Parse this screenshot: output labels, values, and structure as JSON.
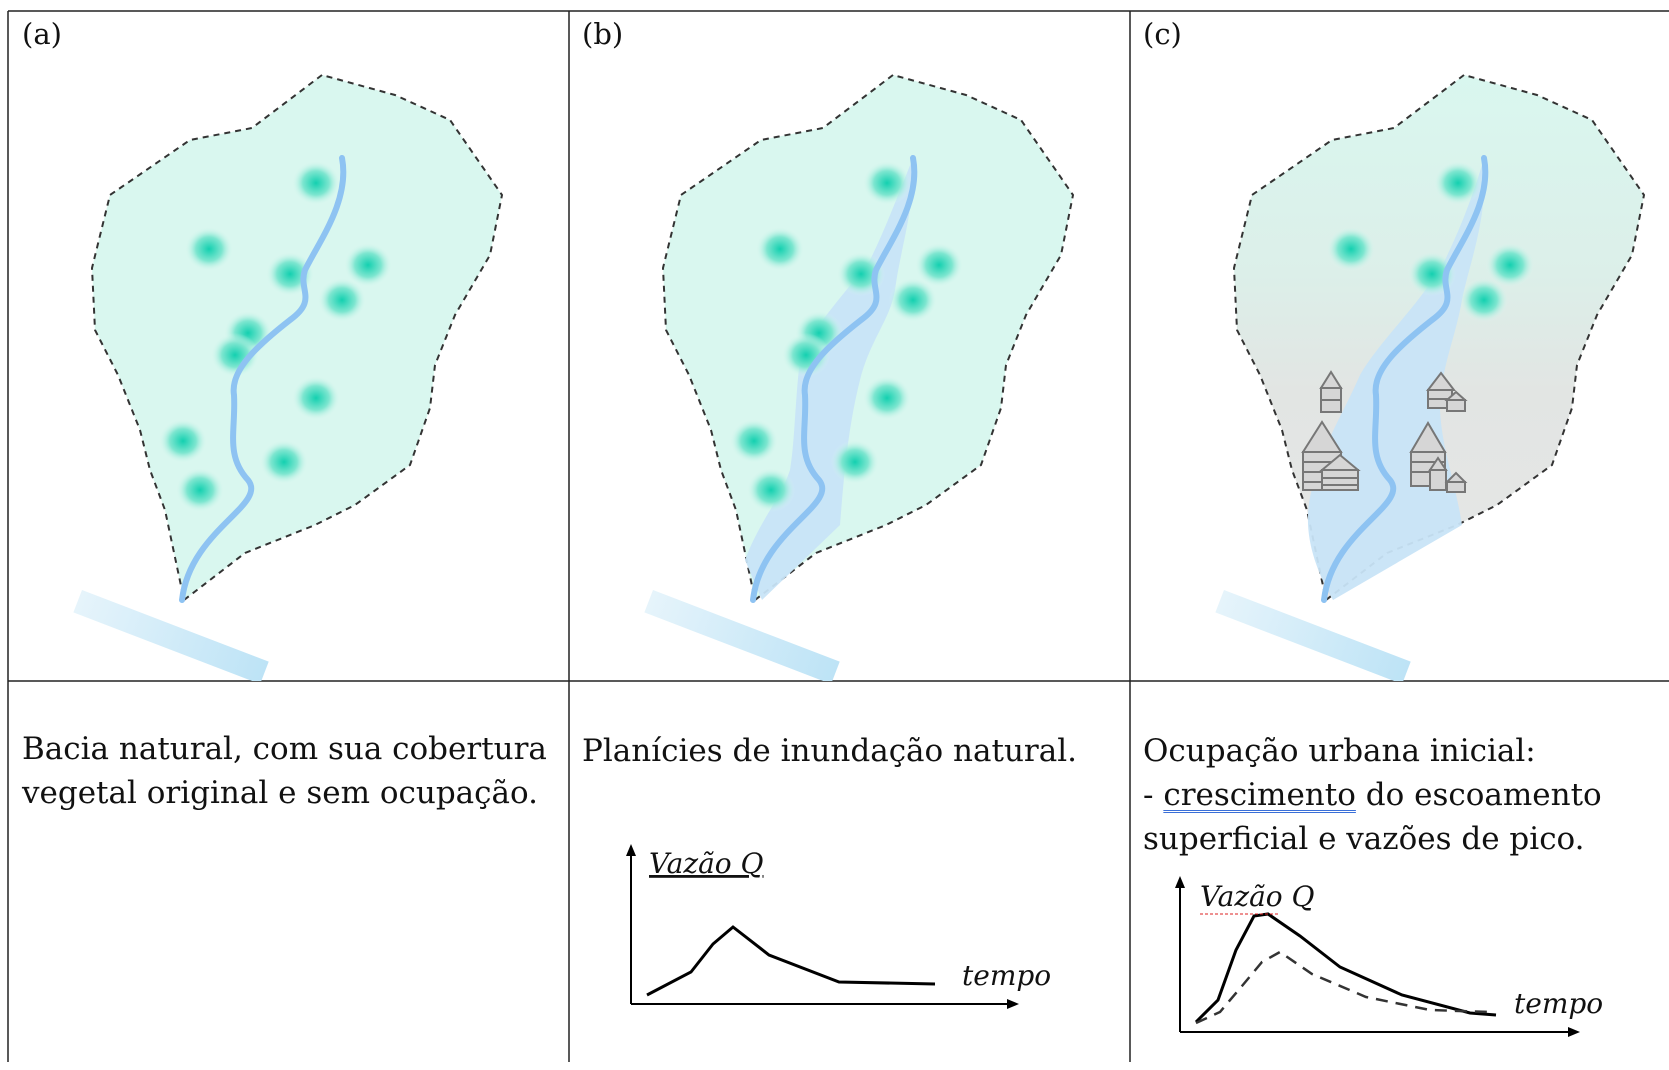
{
  "panels": [
    {
      "label": "(a)",
      "caption_lines": [
        "Bacia natural, com sua cobertura",
        "vegetal original e sem ocupação."
      ]
    },
    {
      "label": "(b)",
      "caption_lines": [
        "Planícies de inundação natural."
      ],
      "hydrograph": {
        "y_label": "Vazão Q",
        "x_label": "tempo"
      }
    },
    {
      "label": "(c)",
      "caption_lines": [
        "Ocupação urbana inicial:",
        "crescimento",
        " do escoamento",
        "superficial e vazões de pico."
      ],
      "caption_prefix": "- ",
      "hydrograph": {
        "y_label": "Vazão Q",
        "x_label": "tempo"
      }
    }
  ],
  "colors": {
    "basin_fill": "#d9f7ef",
    "urban_fill": "#e3e6e4",
    "river": "#8ec3f2",
    "floodplain": "#c8e4f7",
    "vegetation": "#2ed6b4",
    "border": "#222222"
  }
}
